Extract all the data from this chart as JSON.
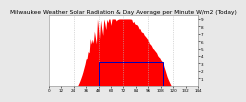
{
  "title": "Milwaukee Weather Solar Radiation & Day Average per Minute W/m2 (Today)",
  "bg_color": "#e8e8e8",
  "plot_bg": "#ffffff",
  "grid_color": "#bbbbbb",
  "bar_color": "#ff0000",
  "line_color": "#0000bb",
  "n_points": 144,
  "peak_value": 9.0,
  "ylim": [
    0,
    9.5
  ],
  "xlim": [
    0,
    144
  ],
  "blue_rect_x1": 48,
  "blue_rect_x2": 110,
  "blue_rect_y1": 0.0,
  "blue_rect_y2": 3.2,
  "ytick_labels": [
    "1",
    "2",
    "3",
    "4",
    "5",
    "6",
    "7",
    "8",
    "9"
  ],
  "ytick_values": [
    1,
    2,
    3,
    4,
    5,
    6,
    7,
    8,
    9
  ],
  "dashed_lines_x": [
    24,
    48,
    72,
    96,
    120,
    144
  ],
  "title_fontsize": 4.2,
  "tick_fontsize": 3.0
}
